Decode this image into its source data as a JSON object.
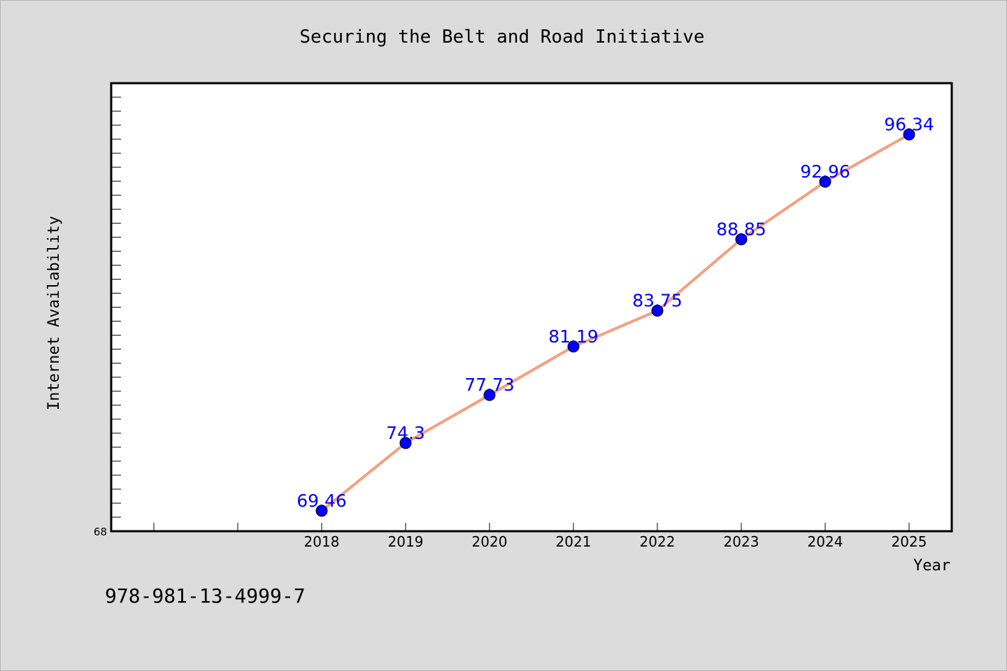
{
  "chart_data": {
    "type": "line",
    "title": "Securing the Belt and Road Initiative",
    "xlabel": "Year",
    "ylabel": "Internet Availability",
    "x": [
      "2018",
      "2019",
      "2020",
      "2021",
      "2022",
      "2023",
      "2024",
      "2025"
    ],
    "series": [
      {
        "values": [
          69.46,
          74.3,
          77.73,
          81.19,
          83.75,
          88.85,
          92.96,
          96.34
        ],
        "data_labels": [
          "69.46",
          "74.3",
          "77.73",
          "81.19",
          "83.75",
          "88.85",
          "92.96",
          "96.34"
        ]
      }
    ],
    "ylim": [
      68,
      100
    ],
    "y_tick_labels": [
      "68"
    ],
    "grid": false,
    "legend": "none",
    "colors": {
      "line": "#f4a07e",
      "marker": "#0000ff",
      "data_label": "#0000ff",
      "background": "#dcdcdc",
      "plot_background": "#ffffff"
    }
  },
  "footer": {
    "isbn": "978-981-13-4999-7"
  }
}
